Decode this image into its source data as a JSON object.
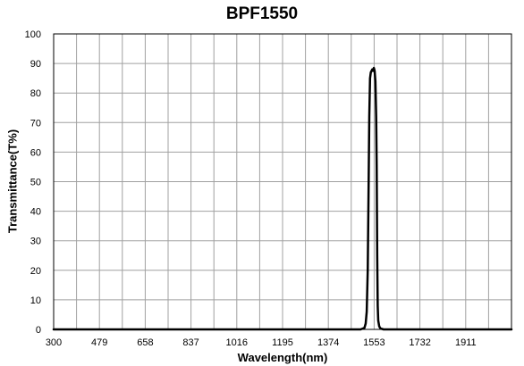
{
  "chart_data": {
    "type": "line",
    "title": "BPF1550",
    "xlabel": "Wavelength(nm)",
    "ylabel": "Transmittance(T%)",
    "xlim": [
      300,
      2090
    ],
    "ylim": [
      0,
      100
    ],
    "x_ticks": [
      300,
      479,
      658,
      837,
      1016,
      1195,
      1374,
      1553,
      1732,
      1911
    ],
    "y_ticks": [
      0,
      10,
      20,
      30,
      40,
      50,
      60,
      70,
      80,
      90,
      100
    ],
    "x_minor_step": 89.5,
    "grid": true,
    "series": [
      {
        "color": "#000000",
        "x": [
          300,
          1500,
          1515,
          1520,
          1524,
          1528,
          1531,
          1534,
          1537,
          1540,
          1543,
          1546,
          1549,
          1552,
          1555,
          1558,
          1561,
          1563,
          1565,
          1567,
          1569,
          1573,
          1578,
          1590,
          2090
        ],
        "y": [
          0,
          0,
          0.5,
          2,
          6,
          20,
          45,
          72,
          85,
          87,
          87.5,
          88,
          87.5,
          88.5,
          87.5,
          84,
          72,
          55,
          25,
          8,
          3,
          1,
          0.3,
          0,
          0
        ]
      }
    ]
  }
}
